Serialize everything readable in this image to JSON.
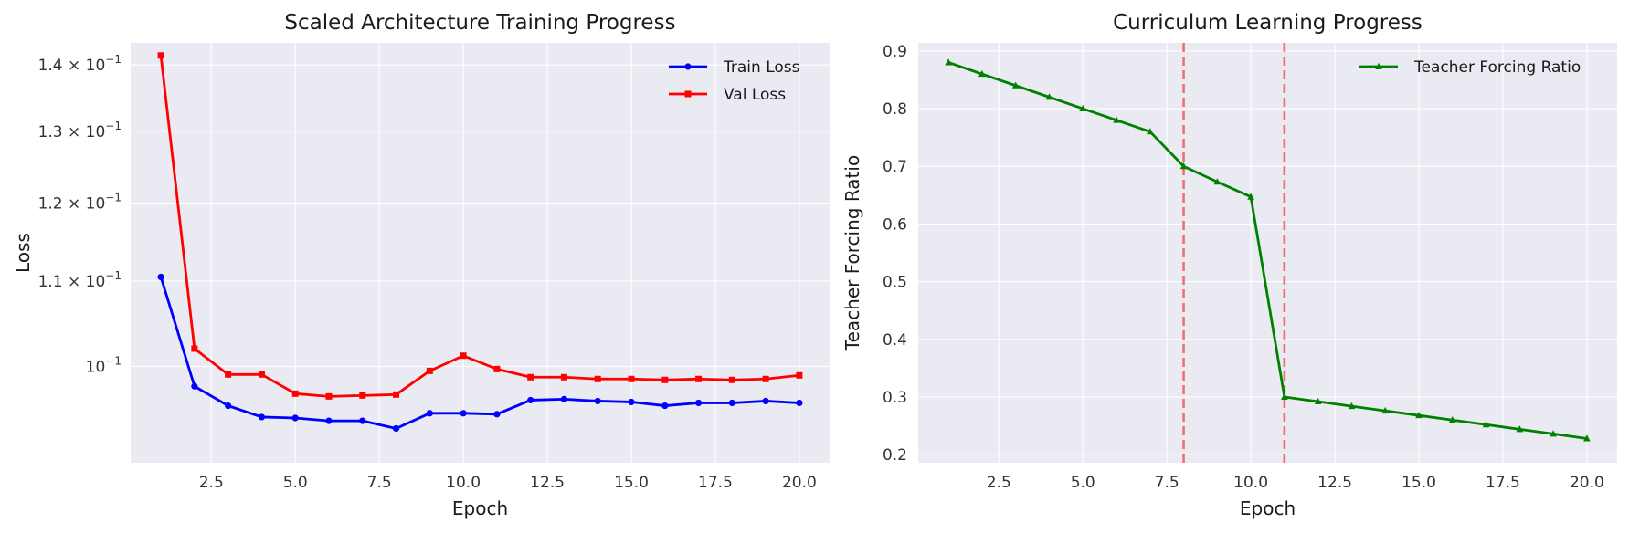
{
  "chart_data": [
    {
      "type": "line",
      "title": "Scaled Architecture Training Progress",
      "xlabel": "Epoch",
      "ylabel": "Loss",
      "yscale": "log",
      "xlim": [
        0.1,
        20.9
      ],
      "ylim": [
        0.0898,
        0.1435
      ],
      "grid": true,
      "legend_position": "top-right",
      "x": [
        1,
        2,
        3,
        4,
        5,
        6,
        7,
        8,
        9,
        10,
        11,
        12,
        13,
        14,
        15,
        16,
        17,
        18,
        19,
        20
      ],
      "x_ticks": [
        2.5,
        5.0,
        7.5,
        10.0,
        12.5,
        15.0,
        17.5,
        20.0
      ],
      "x_tick_labels": [
        "2.5",
        "5.0",
        "7.5",
        "10.0",
        "12.5",
        "15.0",
        "17.5",
        "20.0"
      ],
      "y_ticks": [
        0.1,
        0.11,
        0.12,
        0.13,
        0.14
      ],
      "y_tick_labels": [
        {
          "mantissa": "",
          "base": "10",
          "exp": "−1"
        },
        {
          "mantissa": "1.1 × ",
          "base": "10",
          "exp": "−1"
        },
        {
          "mantissa": "1.2 × ",
          "base": "10",
          "exp": "−1"
        },
        {
          "mantissa": "1.3 × ",
          "base": "10",
          "exp": "−1"
        },
        {
          "mantissa": "1.4 × ",
          "base": "10",
          "exp": "−1"
        }
      ],
      "series": [
        {
          "name": "Train Loss",
          "color": "#0000ff",
          "marker": "circle",
          "values": [
            0.1105,
            0.0978,
            0.0957,
            0.0945,
            0.0944,
            0.0941,
            0.0941,
            0.0933,
            0.0949,
            0.0949,
            0.0948,
            0.0963,
            0.0964,
            0.0962,
            0.0961,
            0.0957,
            0.096,
            0.096,
            0.0962,
            0.096
          ]
        },
        {
          "name": "Val Loss",
          "color": "#ff0000",
          "marker": "square",
          "values": [
            0.1415,
            0.102,
            0.0991,
            0.0991,
            0.097,
            0.0967,
            0.0968,
            0.0969,
            0.0995,
            0.1012,
            0.0997,
            0.0988,
            0.0988,
            0.0986,
            0.0986,
            0.0985,
            0.0986,
            0.0985,
            0.0986,
            0.099
          ]
        }
      ]
    },
    {
      "type": "line",
      "title": "Curriculum Learning Progress",
      "xlabel": "Epoch",
      "ylabel": "Teacher Forcing Ratio",
      "xlim": [
        0.1,
        20.9
      ],
      "ylim": [
        0.186,
        0.914
      ],
      "grid": true,
      "legend_position": "top-right",
      "x": [
        1,
        2,
        3,
        4,
        5,
        6,
        7,
        8,
        9,
        10,
        11,
        12,
        13,
        14,
        15,
        16,
        17,
        18,
        19,
        20
      ],
      "x_ticks": [
        2.5,
        5.0,
        7.5,
        10.0,
        12.5,
        15.0,
        17.5,
        20.0
      ],
      "x_tick_labels": [
        "2.5",
        "5.0",
        "7.5",
        "10.0",
        "12.5",
        "15.0",
        "17.5",
        "20.0"
      ],
      "y_ticks": [
        0.2,
        0.3,
        0.4,
        0.5,
        0.6,
        0.7,
        0.8,
        0.9
      ],
      "y_tick_labels": [
        "0.2",
        "0.3",
        "0.4",
        "0.5",
        "0.6",
        "0.7",
        "0.8",
        "0.9"
      ],
      "vlines": [
        8,
        11
      ],
      "vline_color": "#f07070",
      "series": [
        {
          "name": "Teacher Forcing Ratio",
          "color": "#008000",
          "marker": "triangle",
          "values": [
            0.88,
            0.86,
            0.84,
            0.82,
            0.8,
            0.78,
            0.76,
            0.7,
            0.673,
            0.647,
            0.3,
            0.292,
            0.284,
            0.276,
            0.268,
            0.26,
            0.252,
            0.244,
            0.236,
            0.228
          ]
        }
      ]
    }
  ],
  "colors": {
    "plot_background": "#eaeaf2",
    "grid": "#ffffff",
    "text": "#1a1a1a"
  }
}
